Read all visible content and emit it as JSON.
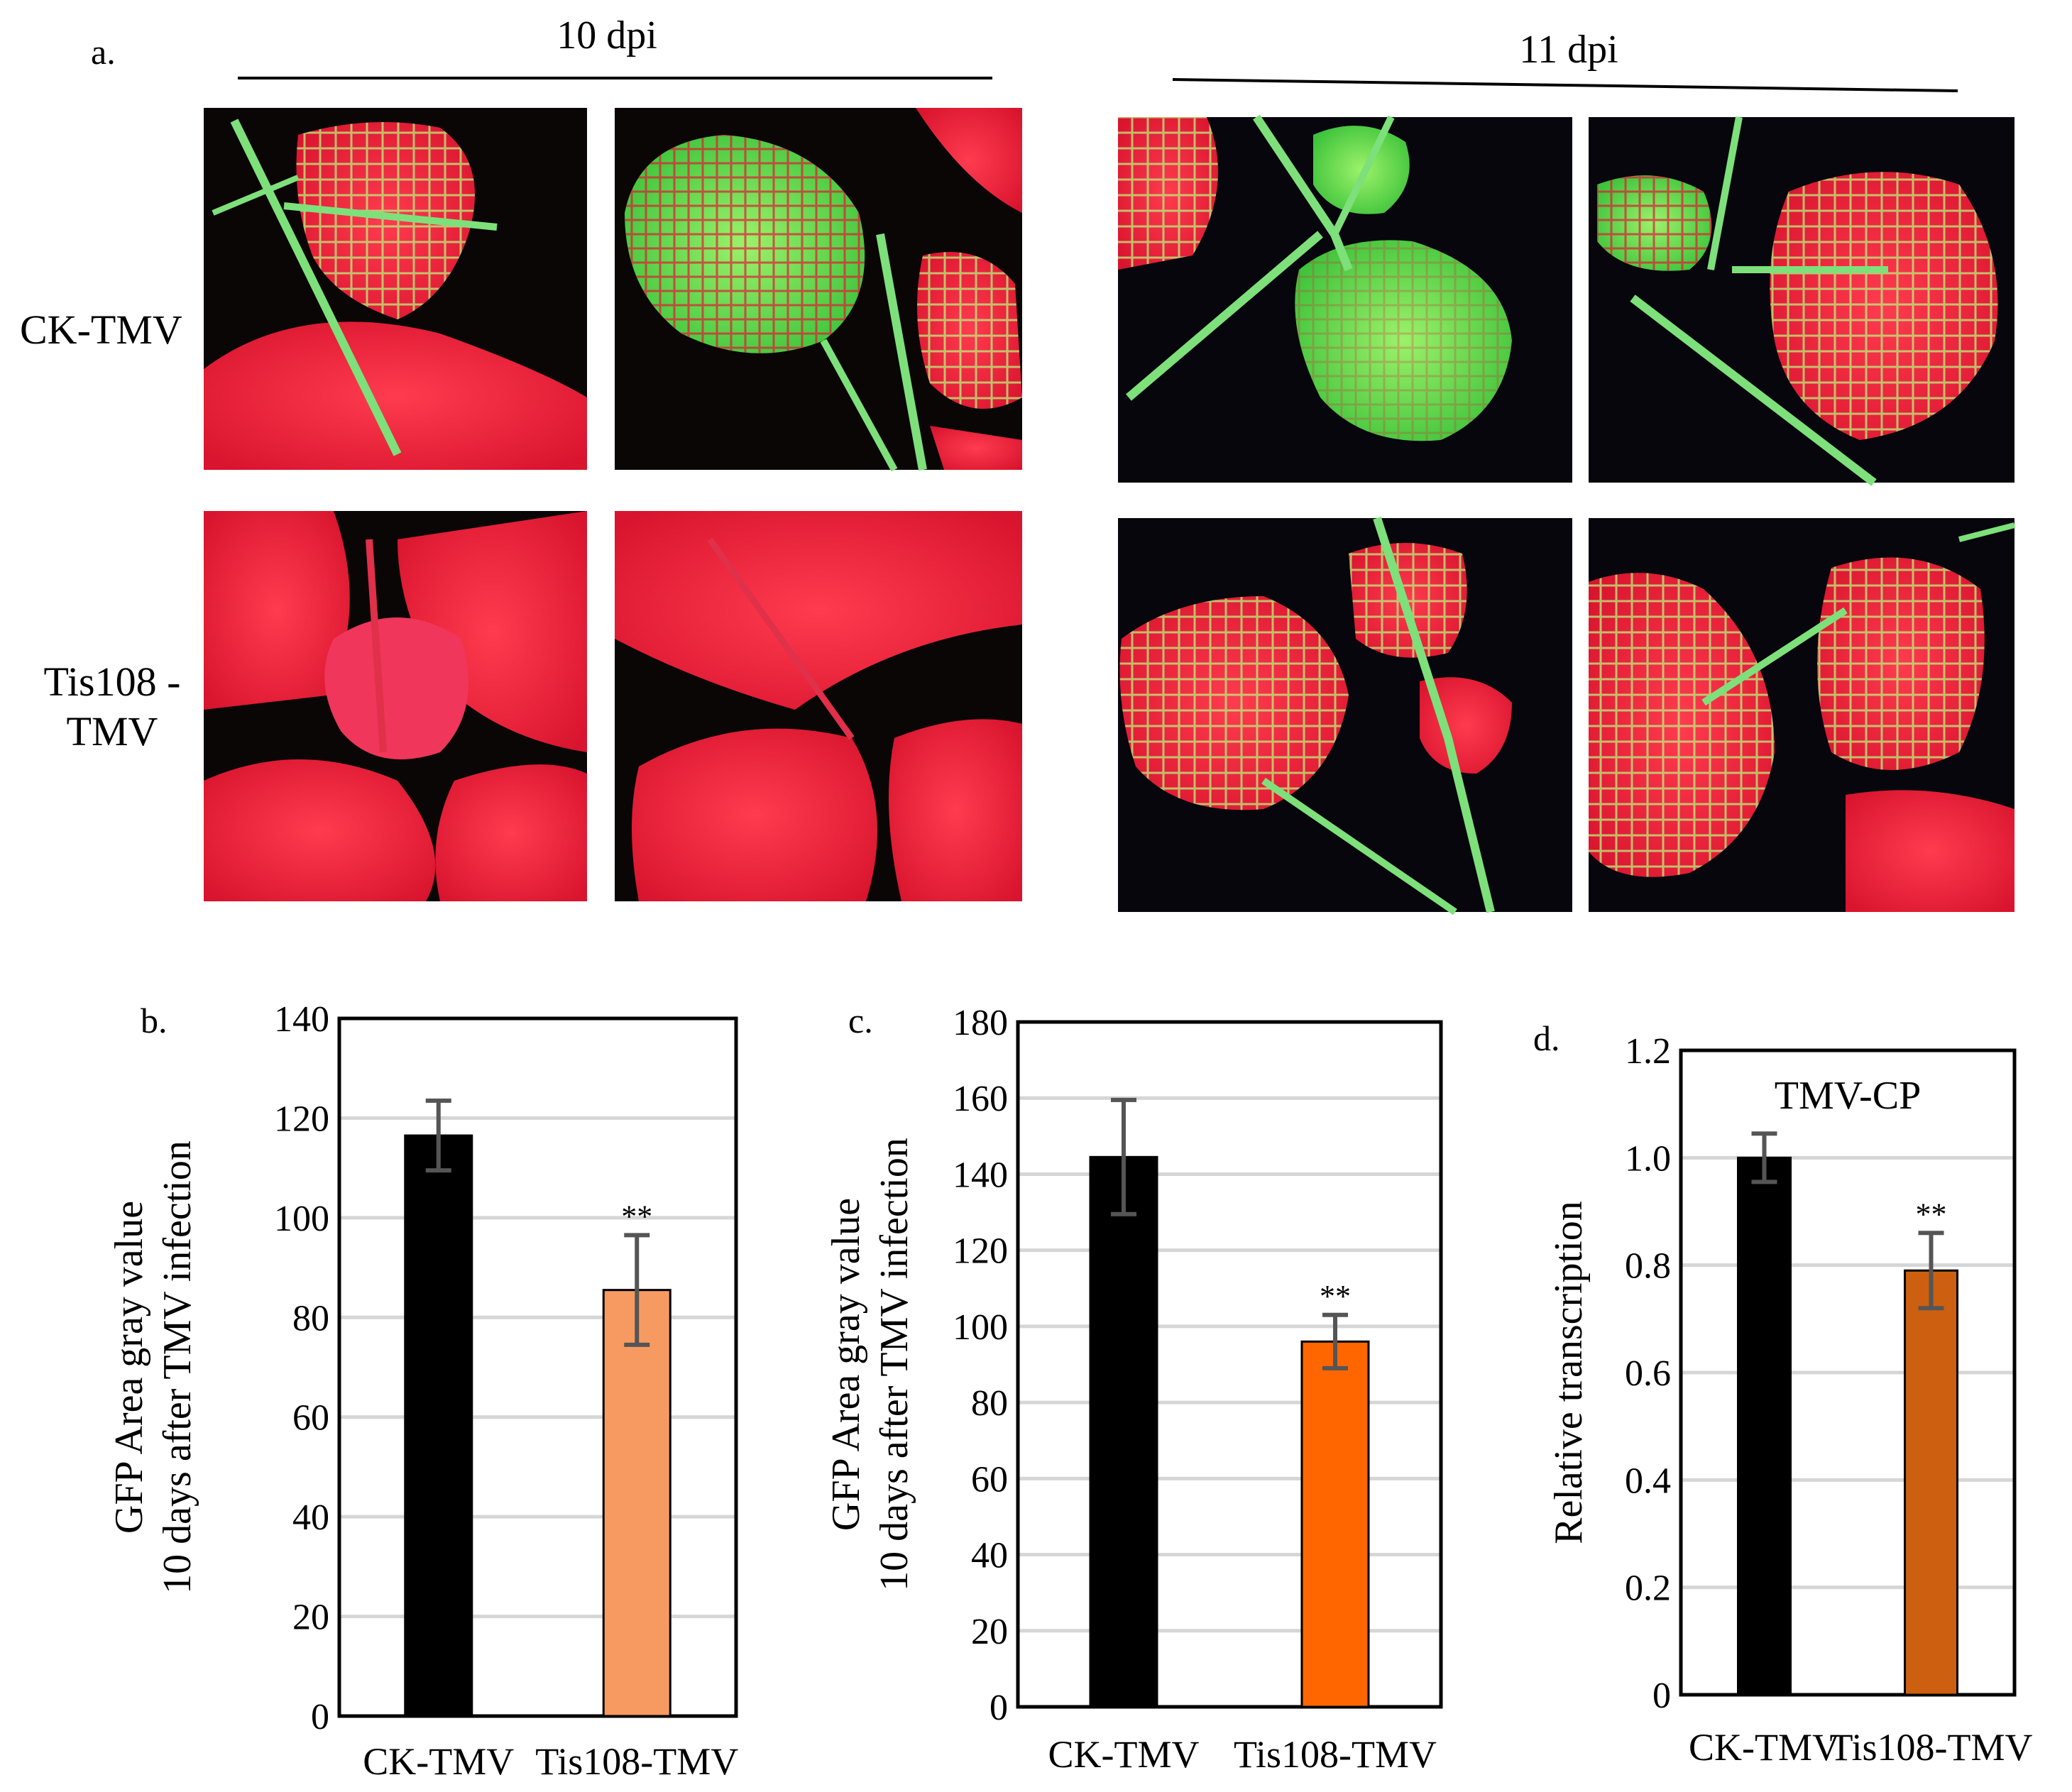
{
  "panel_a": {
    "label": "a.",
    "time_labels": [
      "10 dpi",
      "11 dpi"
    ],
    "row_labels": [
      [
        "CK-TMV"
      ],
      [
        "Tis108 -",
        "TMV"
      ]
    ]
  },
  "chart_data": [
    {
      "type": "bar",
      "panel_label": "b.",
      "categories": [
        "CK-TMV",
        "Tis108-TMV"
      ],
      "values": [
        116.5,
        85.5
      ],
      "errors": [
        7,
        11
      ],
      "significance": [
        "",
        "**"
      ],
      "ylabel": [
        "GFP Area gray  value",
        "10 days after TMV infection"
      ],
      "ylim": [
        0,
        140
      ],
      "yticks": [
        "0",
        "20",
        "40",
        "60",
        "80",
        "100",
        "120",
        "140"
      ],
      "bar_colors": [
        "#000000",
        "#f79a62"
      ],
      "grid": true
    },
    {
      "type": "bar",
      "panel_label": "c.",
      "categories": [
        "CK-TMV",
        "Tis108-TMV"
      ],
      "values": [
        144.5,
        96
      ],
      "errors": [
        15,
        7
      ],
      "significance": [
        "",
        "**"
      ],
      "ylabel": [
        "GFP Area gray  value",
        "10 days after TMV infection"
      ],
      "ylim": [
        0,
        180
      ],
      "yticks": [
        "0",
        "20",
        "40",
        "60",
        "80",
        "100",
        "120",
        "140",
        "160",
        "180"
      ],
      "bar_colors": [
        "#000000",
        "#ff6600"
      ],
      "grid": true
    },
    {
      "type": "bar",
      "panel_label": "d.",
      "title": "TMV-CP",
      "categories": [
        "CK-TMV",
        "Tis108-TMV"
      ],
      "values": [
        1.0,
        0.79
      ],
      "errors": [
        0.045,
        0.07
      ],
      "significance": [
        "",
        "**"
      ],
      "ylabel": [
        "Relative transcription"
      ],
      "ylim": [
        0,
        1.2
      ],
      "yticks": [
        "0",
        "0.2",
        "0.4",
        "0.6",
        "0.8",
        "1.0",
        "1.2"
      ],
      "bar_colors": [
        "#000000",
        "#cc6010"
      ],
      "grid": true
    }
  ]
}
